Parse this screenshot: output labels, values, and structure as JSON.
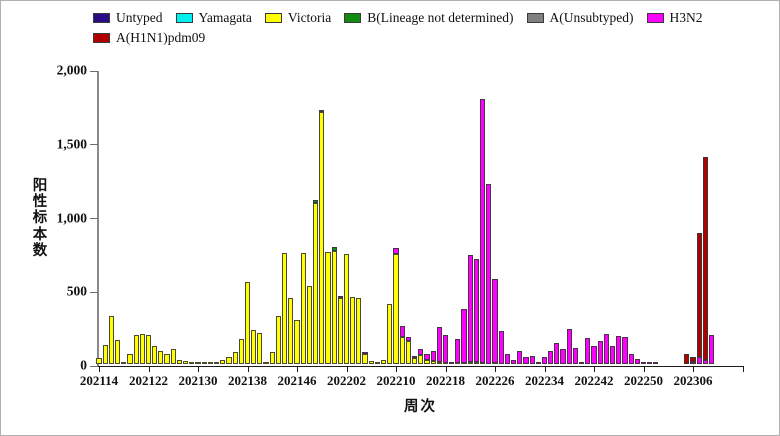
{
  "legend": {
    "items": [
      {
        "label": "Untyped",
        "color": "#2B0B86"
      },
      {
        "label": "Yamagata",
        "color": "#00F0F0"
      },
      {
        "label": "Victoria",
        "color": "#FFFF00"
      },
      {
        "label": "B(Lineage not determined)",
        "color": "#108C10"
      },
      {
        "label": "A(Unsubtyped)",
        "color": "#808080"
      },
      {
        "label": "H3N2",
        "color": "#FF00FF"
      },
      {
        "label": "A(H1N1)pdm09",
        "color": "#B20000"
      }
    ],
    "row_break_after": 6
  },
  "y_axis": {
    "title": "阳性标本数",
    "ticks": [
      {
        "value": 0,
        "label": "0"
      },
      {
        "value": 500,
        "label": "500"
      },
      {
        "value": 1000,
        "label": "1,000"
      },
      {
        "value": 1500,
        "label": "1,500"
      },
      {
        "value": 2000,
        "label": "2,000"
      }
    ]
  },
  "x_axis": {
    "title": "周次",
    "tick_labels": [
      "202114",
      "202122",
      "202130",
      "202138",
      "202146",
      "202202",
      "202210",
      "202218",
      "202226",
      "202234",
      "202242",
      "202250",
      "202306"
    ]
  },
  "chart_data": {
    "type": "bar",
    "stacked": true,
    "title": "",
    "xlabel": "周次",
    "ylabel": "阳性标本数",
    "ylim": [
      0,
      2000
    ],
    "grid": false,
    "legend_position": "top",
    "tick_every": 8,
    "x": [
      "202114",
      "202115",
      "202116",
      "202117",
      "202118",
      "202119",
      "202120",
      "202121",
      "202122",
      "202123",
      "202124",
      "202125",
      "202126",
      "202127",
      "202128",
      "202129",
      "202130",
      "202131",
      "202132",
      "202133",
      "202134",
      "202135",
      "202136",
      "202137",
      "202138",
      "202139",
      "202140",
      "202141",
      "202142",
      "202143",
      "202144",
      "202145",
      "202146",
      "202147",
      "202148",
      "202149",
      "202150",
      "202151",
      "202152",
      "202201",
      "202202",
      "202203",
      "202204",
      "202205",
      "202206",
      "202207",
      "202208",
      "202209",
      "202210",
      "202211",
      "202212",
      "202213",
      "202214",
      "202215",
      "202216",
      "202217",
      "202218",
      "202219",
      "202220",
      "202221",
      "202222",
      "202223",
      "202224",
      "202225",
      "202226",
      "202227",
      "202228",
      "202229",
      "202230",
      "202231",
      "202232",
      "202233",
      "202234",
      "202235",
      "202236",
      "202237",
      "202238",
      "202239",
      "202240",
      "202241",
      "202242",
      "202243",
      "202244",
      "202245",
      "202246",
      "202247",
      "202248",
      "202249",
      "202250",
      "202251",
      "202252",
      "202301",
      "202302",
      "202303",
      "202304",
      "202305",
      "202306",
      "202307",
      "202308",
      "202309"
    ],
    "series": [
      {
        "name": "Untyped",
        "color": "#2B0B86",
        "values": [
          0,
          0,
          0,
          0,
          0,
          0,
          0,
          0,
          0,
          0,
          0,
          0,
          0,
          0,
          0,
          0,
          0,
          0,
          0,
          0,
          0,
          0,
          0,
          0,
          0,
          0,
          0,
          0,
          0,
          0,
          0,
          0,
          0,
          0,
          0,
          0,
          0,
          0,
          0,
          0,
          0,
          0,
          0,
          0,
          0,
          0,
          0,
          0,
          0,
          0,
          0,
          0,
          0,
          0,
          0,
          0,
          0,
          0,
          0,
          0,
          0,
          0,
          0,
          0,
          0,
          0,
          0,
          0,
          0,
          0,
          0,
          0,
          0,
          0,
          0,
          0,
          0,
          0,
          0,
          0,
          0,
          0,
          0,
          0,
          0,
          0,
          0,
          0,
          0,
          0,
          0,
          0,
          0,
          0,
          0,
          0,
          0,
          0,
          0,
          0
        ]
      },
      {
        "name": "Yamagata",
        "color": "#00F0F0",
        "values": [
          0,
          0,
          0,
          0,
          0,
          0,
          0,
          0,
          0,
          0,
          0,
          0,
          0,
          0,
          0,
          0,
          0,
          0,
          0,
          0,
          0,
          0,
          0,
          0,
          0,
          0,
          0,
          0,
          0,
          0,
          0,
          0,
          0,
          0,
          0,
          0,
          0,
          0,
          0,
          0,
          0,
          0,
          0,
          0,
          0,
          0,
          0,
          0,
          0,
          0,
          0,
          0,
          0,
          0,
          0,
          0,
          0,
          0,
          0,
          0,
          0,
          0,
          0,
          0,
          0,
          0,
          0,
          0,
          0,
          0,
          0,
          0,
          0,
          0,
          0,
          0,
          0,
          0,
          0,
          0,
          0,
          0,
          0,
          0,
          0,
          0,
          0,
          0,
          0,
          0,
          0,
          0,
          0,
          0,
          0,
          0,
          0,
          0,
          0,
          0
        ]
      },
      {
        "name": "Victoria",
        "color": "#FFFF00",
        "values": [
          40,
          130,
          325,
          165,
          15,
          70,
          200,
          205,
          195,
          125,
          90,
          65,
          100,
          27,
          18,
          5,
          15,
          8,
          5,
          10,
          30,
          45,
          80,
          170,
          555,
          230,
          210,
          15,
          80,
          325,
          750,
          445,
          300,
          755,
          530,
          1090,
          1710,
          760,
          765,
          445,
          745,
          455,
          445,
          65,
          20,
          10,
          25,
          410,
          745,
          185,
          155,
          40,
          60,
          30,
          20,
          15,
          10,
          0,
          5,
          10,
          15,
          15,
          10,
          0,
          5,
          0,
          0,
          0,
          0,
          0,
          0,
          0,
          0,
          0,
          0,
          0,
          0,
          0,
          0,
          0,
          0,
          0,
          0,
          0,
          0,
          0,
          0,
          0,
          0,
          0,
          0,
          0,
          0,
          0,
          0,
          0,
          0,
          0,
          0
        ]
      },
      {
        "name": "B(Lineage not determined)",
        "color": "#108C10",
        "values": [
          0,
          0,
          0,
          0,
          0,
          0,
          0,
          0,
          0,
          0,
          0,
          0,
          0,
          0,
          0,
          0,
          0,
          0,
          0,
          0,
          0,
          0,
          0,
          0,
          0,
          0,
          0,
          0,
          0,
          0,
          0,
          0,
          0,
          0,
          0,
          20,
          0,
          0,
          25,
          0,
          0,
          0,
          0,
          0,
          0,
          0,
          0,
          0,
          0,
          0,
          0,
          0,
          0,
          0,
          0,
          0,
          0,
          0,
          0,
          0,
          0,
          0,
          0,
          0,
          0,
          0,
          0,
          0,
          0,
          0,
          0,
          0,
          0,
          0,
          0,
          0,
          0,
          0,
          0,
          0,
          0,
          0,
          0,
          0,
          0,
          0,
          0,
          0,
          0,
          0,
          0,
          0,
          0,
          0,
          0,
          0,
          0,
          0,
          0,
          0
        ]
      },
      {
        "name": "A(Unsubtyped)",
        "color": "#808080",
        "values": [
          0,
          0,
          0,
          0,
          0,
          0,
          0,
          0,
          0,
          0,
          0,
          0,
          0,
          0,
          0,
          0,
          0,
          0,
          0,
          0,
          0,
          0,
          0,
          0,
          0,
          0,
          0,
          0,
          0,
          0,
          0,
          0,
          0,
          0,
          0,
          0,
          15,
          0,
          0,
          0,
          0,
          0,
          0,
          0,
          0,
          0,
          0,
          0,
          0,
          0,
          0,
          0,
          0,
          0,
          0,
          0,
          0,
          0,
          0,
          0,
          0,
          0,
          0,
          0,
          0,
          0,
          0,
          0,
          0,
          0,
          0,
          0,
          0,
          0,
          0,
          0,
          0,
          0,
          0,
          0,
          0,
          0,
          0,
          0,
          0,
          0,
          0,
          0,
          0,
          0,
          0,
          0,
          0,
          0,
          0,
          0,
          0,
          0,
          0,
          0
        ]
      },
      {
        "name": "H3N2",
        "color": "#FF00FF",
        "values": [
          0,
          0,
          0,
          0,
          0,
          0,
          0,
          0,
          0,
          0,
          0,
          0,
          0,
          0,
          0,
          0,
          0,
          0,
          0,
          0,
          0,
          0,
          0,
          0,
          0,
          0,
          0,
          0,
          0,
          0,
          0,
          0,
          0,
          0,
          0,
          0,
          0,
          0,
          0,
          15,
          0,
          0,
          0,
          5,
          0,
          0,
          0,
          0,
          45,
          70,
          25,
          15,
          45,
          40,
          70,
          235,
          190,
          12,
          165,
          360,
          725,
          695,
          1790,
          1220,
          570,
          225,
          65,
          25,
          90,
          45,
          55,
          5,
          45,
          90,
          145,
          100,
          235,
          110,
          10,
          175,
          125,
          155,
          205,
          125,
          190,
          180,
          65,
          35,
          15,
          5,
          3,
          0,
          0,
          0,
          0,
          3,
          15,
          45,
          25,
          195
        ]
      },
      {
        "name": "A(H1N1)pdm09",
        "color": "#B20000",
        "values": [
          0,
          0,
          0,
          0,
          0,
          0,
          0,
          0,
          0,
          0,
          0,
          0,
          0,
          0,
          0,
          0,
          0,
          0,
          0,
          0,
          0,
          0,
          0,
          0,
          0,
          0,
          0,
          0,
          0,
          0,
          0,
          0,
          0,
          0,
          0,
          0,
          0,
          0,
          0,
          0,
          0,
          0,
          0,
          0,
          0,
          0,
          0,
          0,
          0,
          0,
          0,
          0,
          0,
          0,
          0,
          0,
          0,
          0,
          0,
          0,
          0,
          0,
          0,
          0,
          0,
          0,
          0,
          0,
          0,
          0,
          0,
          0,
          0,
          0,
          0,
          0,
          0,
          0,
          0,
          0,
          0,
          0,
          0,
          0,
          0,
          0,
          0,
          0,
          0,
          0,
          0,
          0,
          0,
          0,
          0,
          65,
          35,
          840,
          1380
        ]
      }
    ]
  }
}
